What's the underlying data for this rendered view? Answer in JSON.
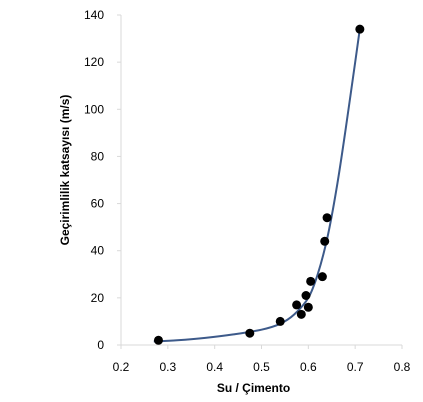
{
  "chart_data": {
    "type": "scatter",
    "title": "",
    "xlabel": "Su / Çimento",
    "ylabel": "Geçirimlilik katsayısı (m/s)",
    "xlim": [
      0.2,
      0.8
    ],
    "ylim": [
      0,
      140
    ],
    "x_ticks": [
      "0.2",
      "0.3",
      "0.4",
      "0.5",
      "0.6",
      "0.7",
      "0.8"
    ],
    "y_ticks": [
      "0",
      "20",
      "40",
      "60",
      "80",
      "100",
      "120",
      "140"
    ],
    "grid": false,
    "legend": "none",
    "series": [
      {
        "points": [
          {
            "x": 0.28,
            "y": 2
          },
          {
            "x": 0.475,
            "y": 5
          },
          {
            "x": 0.54,
            "y": 10
          },
          {
            "x": 0.575,
            "y": 17
          },
          {
            "x": 0.585,
            "y": 13
          },
          {
            "x": 0.595,
            "y": 21
          },
          {
            "x": 0.6,
            "y": 16
          },
          {
            "x": 0.605,
            "y": 27
          },
          {
            "x": 0.63,
            "y": 29
          },
          {
            "x": 0.635,
            "y": 44
          },
          {
            "x": 0.64,
            "y": 54
          },
          {
            "x": 0.71,
            "y": 134
          }
        ]
      }
    ],
    "trendline": {
      "x": [
        0.27,
        0.32,
        0.38,
        0.44,
        0.5,
        0.54,
        0.57,
        0.6,
        0.62,
        0.64,
        0.66,
        0.68,
        0.7,
        0.71
      ],
      "y": [
        1.5,
        2.0,
        3.0,
        4.5,
        6.5,
        9.0,
        13.0,
        20.0,
        30.0,
        45.0,
        66.0,
        92.0,
        120.0,
        134.0
      ]
    },
    "colors": {
      "marker": "#000000",
      "line": "#3d5a8a",
      "axis": "#d9d9d9"
    }
  }
}
